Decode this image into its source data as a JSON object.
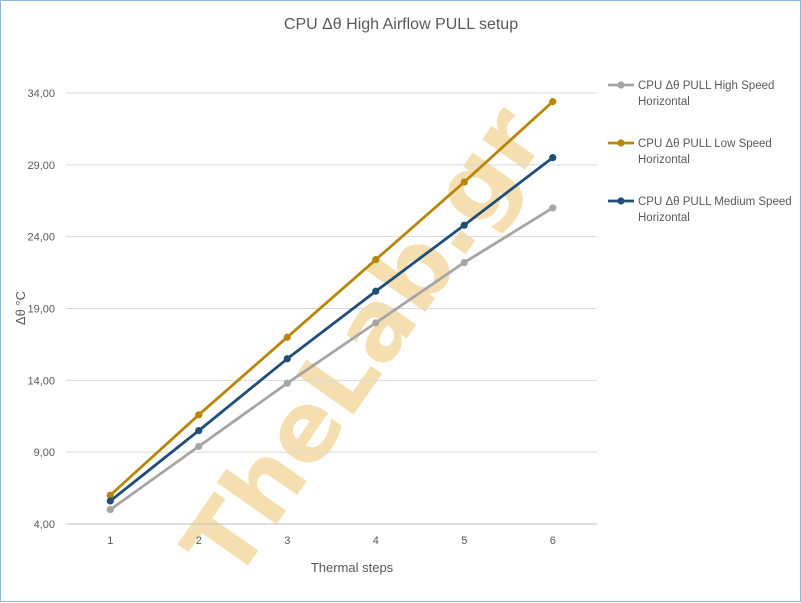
{
  "chart_data": {
    "type": "line",
    "title": "CPU  Δθ  High Airflow  PULL setup",
    "xlabel": "Thermal steps",
    "ylabel": "Δθ  °C",
    "categories": [
      "1",
      "2",
      "3",
      "4",
      "5",
      "6"
    ],
    "ylim": [
      4,
      34
    ],
    "yticks": [
      "4,00",
      "9,00",
      "14,00",
      "19,00",
      "24,00",
      "29,00",
      "34,00"
    ],
    "grid": true,
    "legend_position": "right",
    "series": [
      {
        "name": "CPU Δθ PULL High Speed Horizontal",
        "legend_lines": [
          "CPU Δθ PULL  High Speed",
          "Horizontal"
        ],
        "color": "#a5a5a5",
        "values": [
          5.0,
          9.4,
          13.8,
          18.0,
          22.2,
          26.0
        ]
      },
      {
        "name": "CPU Δθ PULL Low Speed Horizontal",
        "legend_lines": [
          "CPU Δθ PULL  Low Speed",
          "Horizontal"
        ],
        "color": "#b8860b",
        "values": [
          6.0,
          11.6,
          17.0,
          22.4,
          27.8,
          33.4
        ]
      },
      {
        "name": "CPU Δθ PULL Medium Speed Horizontal",
        "legend_lines": [
          "CPU Δθ PULL  Medium Speed",
          "Horizontal"
        ],
        "color": "#1f4e79",
        "values": [
          5.6,
          10.5,
          15.5,
          20.2,
          24.8,
          29.5
        ]
      }
    ]
  },
  "watermark": {
    "text": "TheLab.gr",
    "color": "#f5dfb0"
  }
}
